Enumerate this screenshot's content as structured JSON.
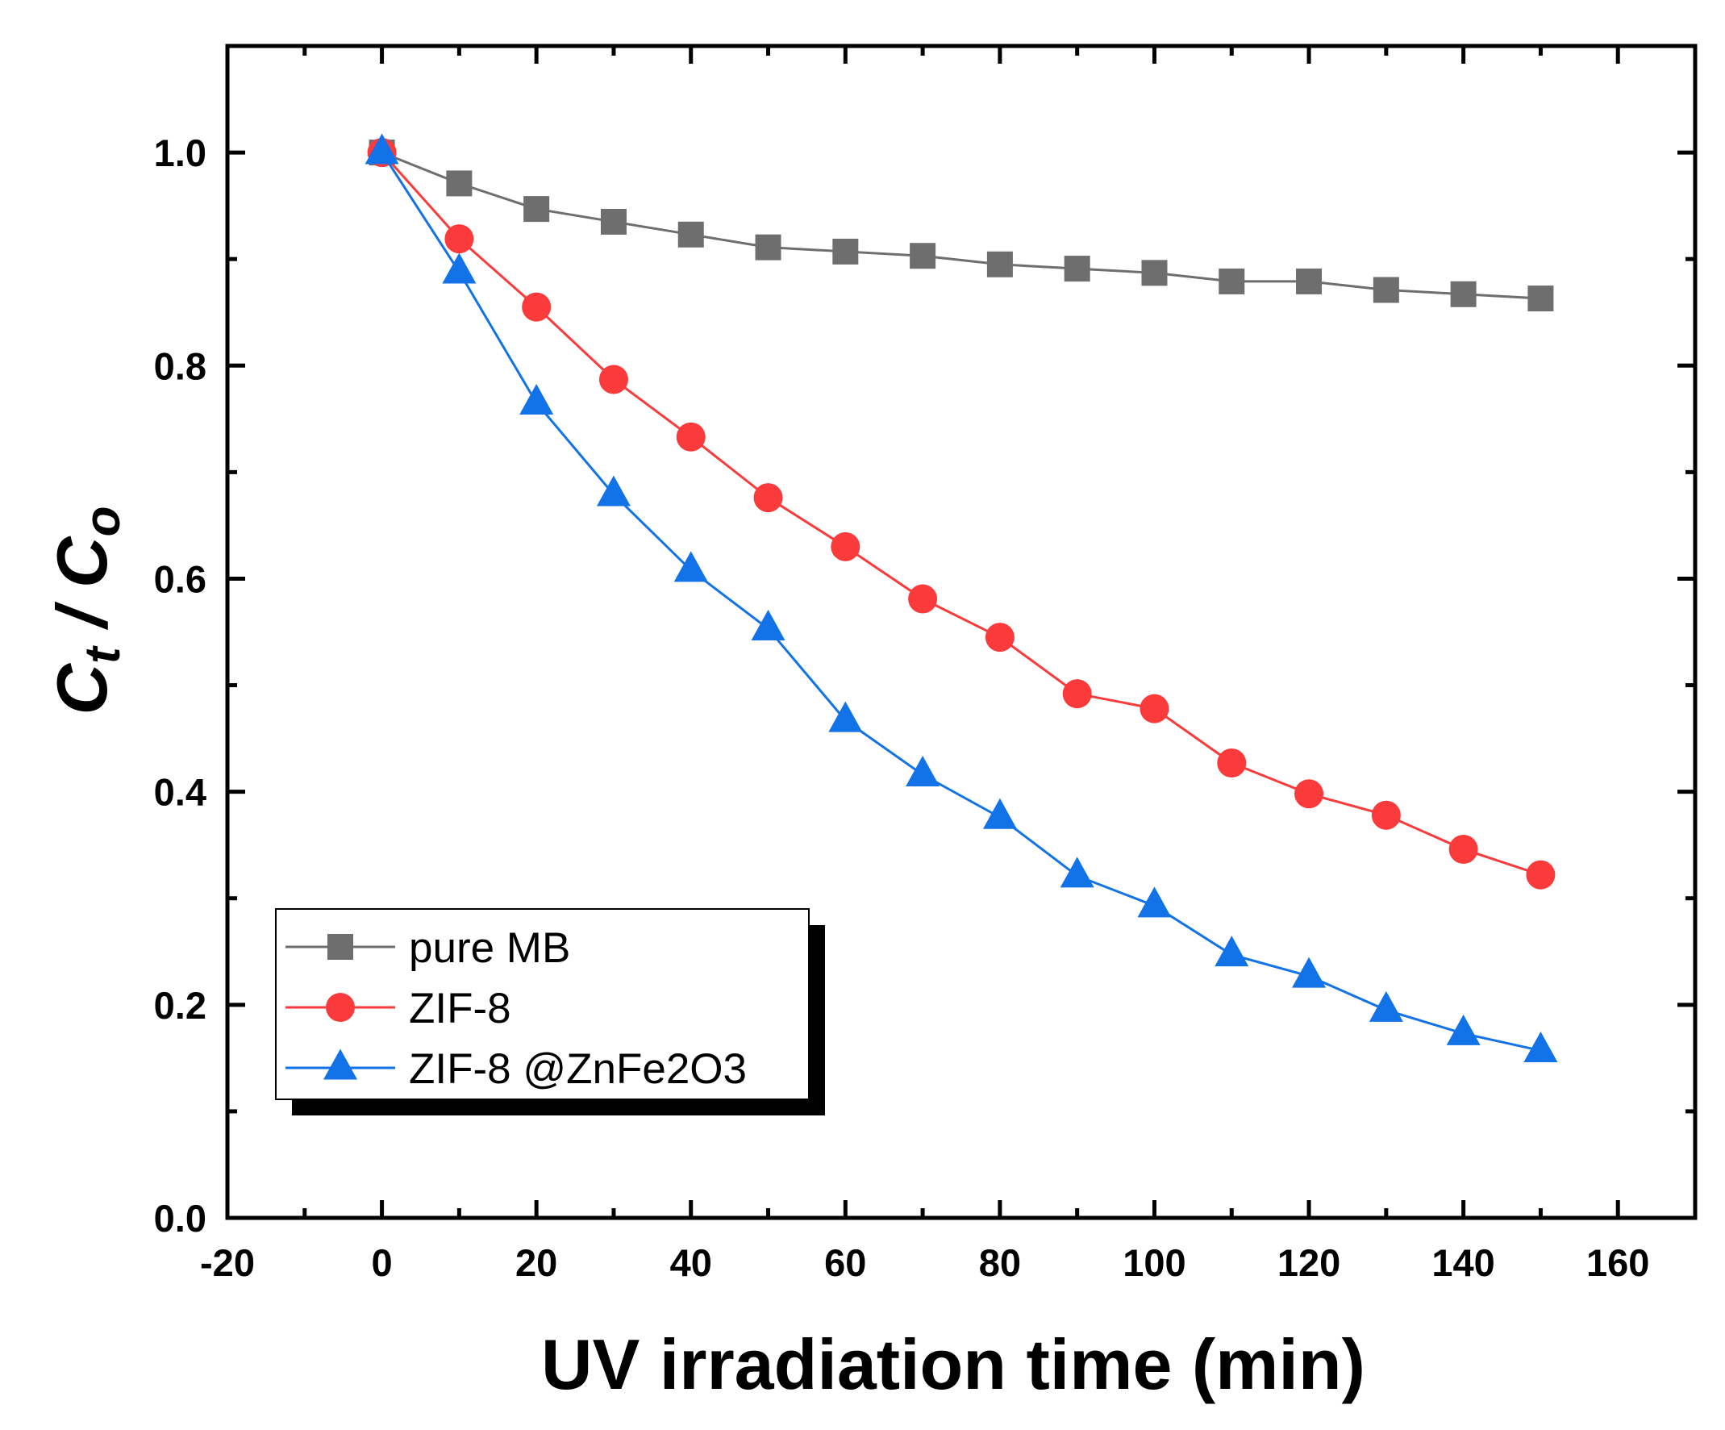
{
  "chart_data": {
    "type": "line",
    "title": "",
    "xlabel": "UV irradiation time (min)",
    "ylabel_main": "C",
    "ylabel_sub1": "t",
    "ylabel_sep": " / ",
    "ylabel_main2": "C",
    "ylabel_sub2": "o",
    "xlim": [
      -20,
      170
    ],
    "ylim": [
      0,
      1.1
    ],
    "x_major_ticks": [
      -20,
      0,
      20,
      40,
      60,
      80,
      100,
      120,
      140,
      160
    ],
    "x_tick_labels": [
      "-20",
      "0",
      "20",
      "40",
      "60",
      "80",
      "100",
      "120",
      "140",
      "160"
    ],
    "x_minor_ticks": [
      -10,
      10,
      30,
      50,
      70,
      90,
      110,
      130,
      150
    ],
    "y_major_ticks": [
      0.0,
      0.2,
      0.4,
      0.6,
      0.8,
      1.0
    ],
    "y_tick_labels": [
      "0.0",
      "0.2",
      "0.4",
      "0.6",
      "0.8",
      "1.0"
    ],
    "y_minor_ticks": [
      0.1,
      0.3,
      0.5,
      0.7,
      0.9
    ],
    "grid": false,
    "legend_position": "bottom-left",
    "x": [
      0,
      10,
      20,
      30,
      40,
      50,
      60,
      70,
      80,
      90,
      100,
      110,
      120,
      130,
      140,
      150
    ],
    "series": [
      {
        "name": "pure MB",
        "marker": "square",
        "color": "#6e6e6e",
        "values": [
          1.0,
          0.971,
          0.947,
          0.935,
          0.923,
          0.911,
          0.907,
          0.903,
          0.895,
          0.891,
          0.887,
          0.879,
          0.879,
          0.871,
          0.867,
          0.863
        ]
      },
      {
        "name": "ZIF-8",
        "marker": "circle",
        "color": "#fb3b3b",
        "values": [
          1.0,
          0.919,
          0.855,
          0.787,
          0.733,
          0.676,
          0.63,
          0.581,
          0.545,
          0.492,
          0.478,
          0.427,
          0.398,
          0.378,
          0.346,
          0.322
        ]
      },
      {
        "name": "ZIF-8 @ZnFe2O3",
        "marker": "triangle",
        "color": "#1272e8",
        "values": [
          1.0,
          0.888,
          0.765,
          0.679,
          0.608,
          0.553,
          0.467,
          0.416,
          0.376,
          0.321,
          0.293,
          0.247,
          0.227,
          0.195,
          0.173,
          0.157
        ]
      }
    ]
  }
}
